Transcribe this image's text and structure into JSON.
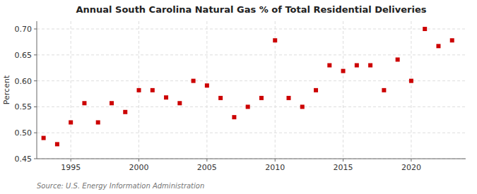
{
  "chart_data": {
    "type": "scatter",
    "title": "Annual South Carolina Natural Gas % of Total Residential Deliveries",
    "y_label": "Percent",
    "annotations": [
      "Source: U.S. Energy Information Administration"
    ],
    "x": [
      1993,
      1994,
      1995,
      1996,
      1997,
      1998,
      1999,
      2000,
      2001,
      2002,
      2003,
      2004,
      2005,
      2006,
      2007,
      2008,
      2009,
      2010,
      2011,
      2012,
      2013,
      2014,
      2015,
      2016,
      2017,
      2018,
      2019,
      2020,
      2021,
      2022,
      2023
    ],
    "values": [
      0.49,
      0.478,
      0.52,
      0.557,
      0.52,
      0.557,
      0.54,
      0.582,
      0.582,
      0.568,
      0.557,
      0.6,
      0.591,
      0.567,
      0.53,
      0.55,
      0.567,
      0.678,
      0.567,
      0.55,
      0.582,
      0.63,
      0.619,
      0.63,
      0.63,
      0.582,
      0.641,
      0.6,
      0.7,
      0.667,
      0.678
    ],
    "color": "#cc0000",
    "marker": "square",
    "xlim": [
      1992.5,
      2024
    ],
    "ylim": [
      0.45,
      0.715
    ],
    "xticks": [
      1995,
      2000,
      2005,
      2010,
      2015,
      2020
    ],
    "yticks": [
      0.45,
      {
        "value": 0.5,
        "label": "0.50"
      },
      0.55,
      {
        "value": 0.6,
        "label": "0.60"
      },
      0.65,
      {
        "value": 0.7,
        "label": "0.70"
      }
    ],
    "grid": true
  }
}
